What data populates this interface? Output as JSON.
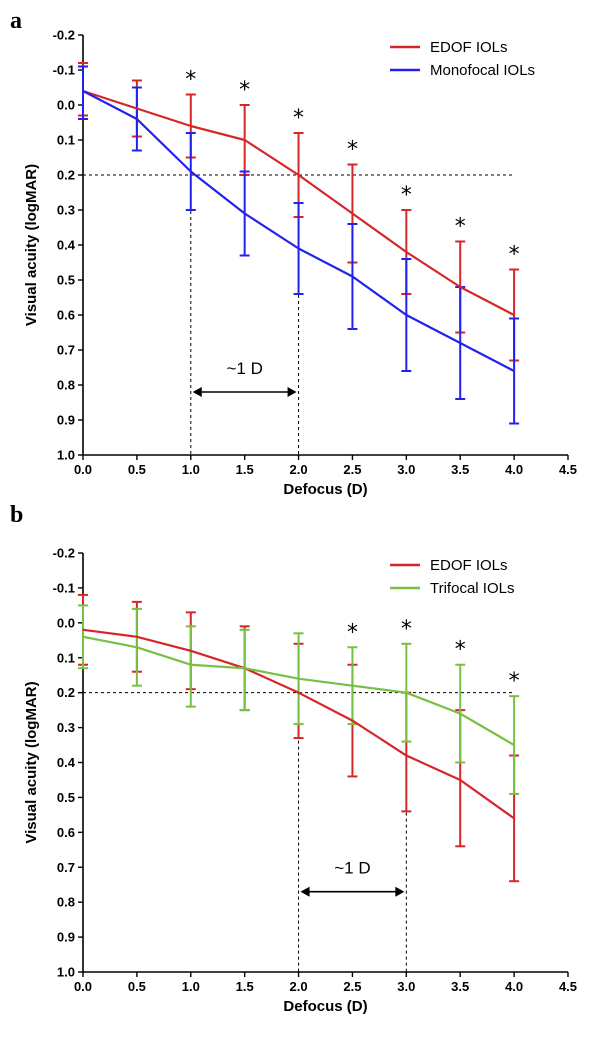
{
  "chart_data": [
    {
      "type": "line",
      "panel_label": "a",
      "xlabel": "Defocus  (D)",
      "ylabel": "Visual acuity (logMAR)",
      "xlim": [
        0,
        4.5
      ],
      "ylim": [
        -0.2,
        1.0
      ],
      "y_inverted": true,
      "x_ticks": [
        "0.0",
        "0.5",
        "1.0",
        "1.5",
        "2.0",
        "2.5",
        "3.0",
        "3.5",
        "4.0",
        "4.5"
      ],
      "x_tick_values": [
        0,
        0.5,
        1.0,
        1.5,
        2.0,
        2.5,
        3.0,
        3.5,
        4.0,
        4.5
      ],
      "y_ticks": [
        "-0.2",
        "-0.1",
        "0.0",
        "0.1",
        "0.2",
        "0.3",
        "0.4",
        "0.5",
        "0.6",
        "0.7",
        "0.8",
        "0.9",
        "1.0"
      ],
      "y_tick_values": [
        -0.2,
        -0.1,
        0,
        0.1,
        0.2,
        0.3,
        0.4,
        0.5,
        0.6,
        0.7,
        0.8,
        0.9,
        1.0
      ],
      "x": [
        0,
        0.5,
        1.0,
        1.5,
        2.0,
        2.5,
        3.0,
        3.5,
        4.0
      ],
      "series": [
        {
          "name": "EDOF IOLs",
          "color": "#d62728",
          "values": [
            -0.04,
            0.01,
            0.06,
            0.1,
            0.2,
            0.31,
            0.42,
            0.52,
            0.6
          ],
          "err_low": [
            -0.12,
            -0.07,
            -0.03,
            0.0,
            0.08,
            0.17,
            0.3,
            0.39,
            0.47
          ],
          "err_high": [
            0.03,
            0.09,
            0.15,
            0.2,
            0.32,
            0.45,
            0.54,
            0.65,
            0.73
          ]
        },
        {
          "name": "Monofocal IOLs",
          "color": "#2222ee",
          "values": [
            -0.04,
            0.04,
            0.19,
            0.31,
            0.41,
            0.49,
            0.6,
            0.68,
            0.76
          ],
          "err_low": [
            -0.11,
            -0.05,
            0.08,
            0.19,
            0.28,
            0.34,
            0.44,
            0.52,
            0.61
          ],
          "err_high": [
            0.04,
            0.13,
            0.3,
            0.43,
            0.54,
            0.64,
            0.76,
            0.84,
            0.91
          ]
        }
      ],
      "significance_markers": {
        "symbol": "*",
        "x": [
          1.0,
          1.5,
          2.0,
          2.5,
          3.0,
          3.5,
          4.0
        ]
      },
      "reference_line_y": 0.2,
      "reference_x_lines": [
        1.0,
        2.0
      ],
      "bracket_x": [
        1.0,
        2.0
      ],
      "annotation": "~1 D",
      "legend_position": "top-right"
    },
    {
      "type": "line",
      "panel_label": "b",
      "xlabel": "Defocus  (D)",
      "ylabel": "Visual acuity (logMAR)",
      "xlim": [
        0,
        4.5
      ],
      "ylim": [
        -0.2,
        1.0
      ],
      "y_inverted": true,
      "x_ticks": [
        "0.0",
        "0.5",
        "1.0",
        "1.5",
        "2.0",
        "2.5",
        "3.0",
        "3.5",
        "4.0",
        "4.5"
      ],
      "x_tick_values": [
        0,
        0.5,
        1.0,
        1.5,
        2.0,
        2.5,
        3.0,
        3.5,
        4.0,
        4.5
      ],
      "y_ticks": [
        "-0.2",
        "-0.1",
        "0.0",
        "0.1",
        "0.2",
        "0.3",
        "0.4",
        "0.5",
        "0.6",
        "0.7",
        "0.8",
        "0.9",
        "1.0"
      ],
      "y_tick_values": [
        -0.2,
        -0.1,
        0,
        0.1,
        0.2,
        0.3,
        0.4,
        0.5,
        0.6,
        0.7,
        0.8,
        0.9,
        1.0
      ],
      "x": [
        0,
        0.5,
        1.0,
        1.5,
        2.0,
        2.5,
        3.0,
        3.5,
        4.0
      ],
      "series": [
        {
          "name": "EDOF IOLs",
          "color": "#d62728",
          "values": [
            0.02,
            0.04,
            0.08,
            0.13,
            0.2,
            0.28,
            0.38,
            0.45,
            0.56
          ],
          "err_low": [
            -0.08,
            -0.06,
            -0.03,
            0.01,
            0.06,
            0.12,
            0.2,
            0.25,
            0.38
          ],
          "err_high": [
            0.12,
            0.14,
            0.19,
            0.25,
            0.33,
            0.44,
            0.54,
            0.64,
            0.74
          ]
        },
        {
          "name": "Trifocal IOLs",
          "color": "#77c043",
          "values": [
            0.04,
            0.07,
            0.12,
            0.13,
            0.16,
            0.18,
            0.2,
            0.26,
            0.35
          ],
          "err_low": [
            -0.05,
            -0.04,
            0.01,
            0.02,
            0.03,
            0.07,
            0.06,
            0.12,
            0.21
          ],
          "err_high": [
            0.13,
            0.18,
            0.24,
            0.25,
            0.29,
            0.29,
            0.34,
            0.4,
            0.49
          ]
        }
      ],
      "significance_markers": {
        "symbol": "*",
        "x": [
          2.5,
          3.0,
          3.5,
          4.0
        ]
      },
      "reference_line_y": 0.2,
      "reference_x_lines": [
        2.0,
        3.0
      ],
      "bracket_x": [
        2.0,
        3.0
      ],
      "annotation": "~1 D",
      "legend_position": "top-right"
    }
  ]
}
